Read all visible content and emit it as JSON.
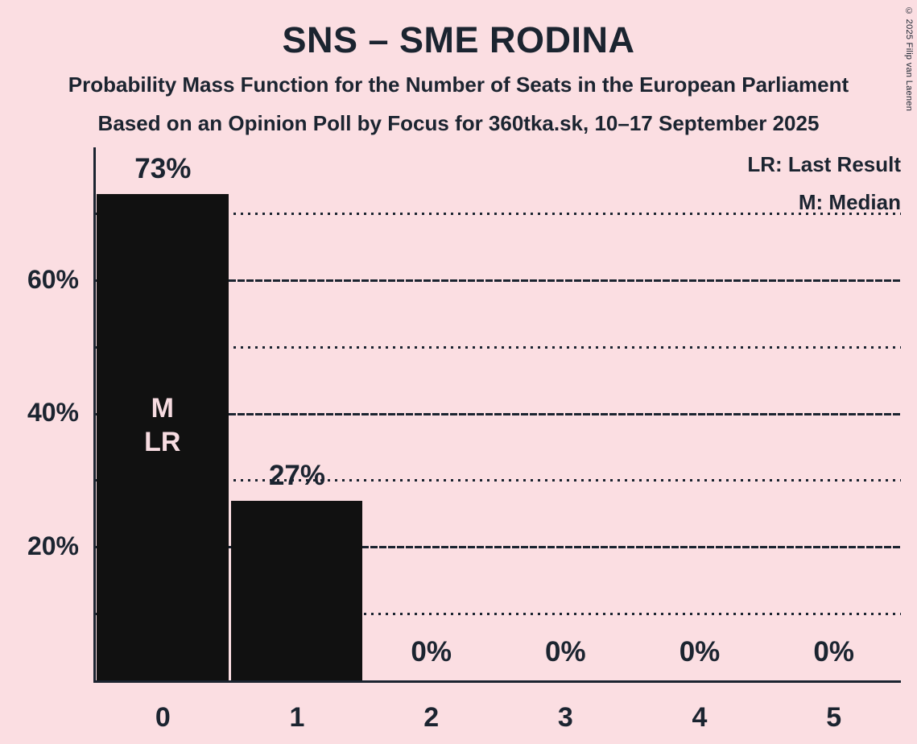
{
  "header": {
    "title": "SNS – SME RODINA",
    "subtitle": "Probability Mass Function for the Number of Seats in the European Parliament",
    "source_line": "Based on an Opinion Poll by Focus for 360tka.sk, 10–17 September 2025"
  },
  "legend": {
    "last_result": "LR: Last Result",
    "median": "M: Median"
  },
  "copyright": "© 2025 Filip van Laenen",
  "chart_data": {
    "type": "bar",
    "title": "SNS – SME RODINA",
    "categories": [
      "0",
      "1",
      "2",
      "3",
      "4",
      "5"
    ],
    "values": [
      73,
      27,
      0,
      0,
      0,
      0
    ],
    "value_labels": [
      "73%",
      "27%",
      "0%",
      "0%",
      "0%",
      "0%"
    ],
    "ylim": [
      0,
      80
    ],
    "ytick_labels": [
      {
        "value": 20,
        "label": "20%"
      },
      {
        "value": 40,
        "label": "40%"
      },
      {
        "value": 60,
        "label": "60%"
      }
    ],
    "gridlines": {
      "solid": [
        20,
        40,
        60
      ],
      "dotted": [
        10,
        30,
        50,
        70
      ]
    },
    "annotations": [
      {
        "bar_index": 0,
        "lines": [
          "M",
          "LR"
        ]
      }
    ],
    "legend_position": "top-right",
    "grid": "horizontal",
    "xlabel": "",
    "ylabel": ""
  },
  "colors": {
    "background": "#FBDEE2",
    "ink": "#1B2430",
    "bar": "#111111",
    "bar_annotation_text": "#F7DCE1"
  }
}
